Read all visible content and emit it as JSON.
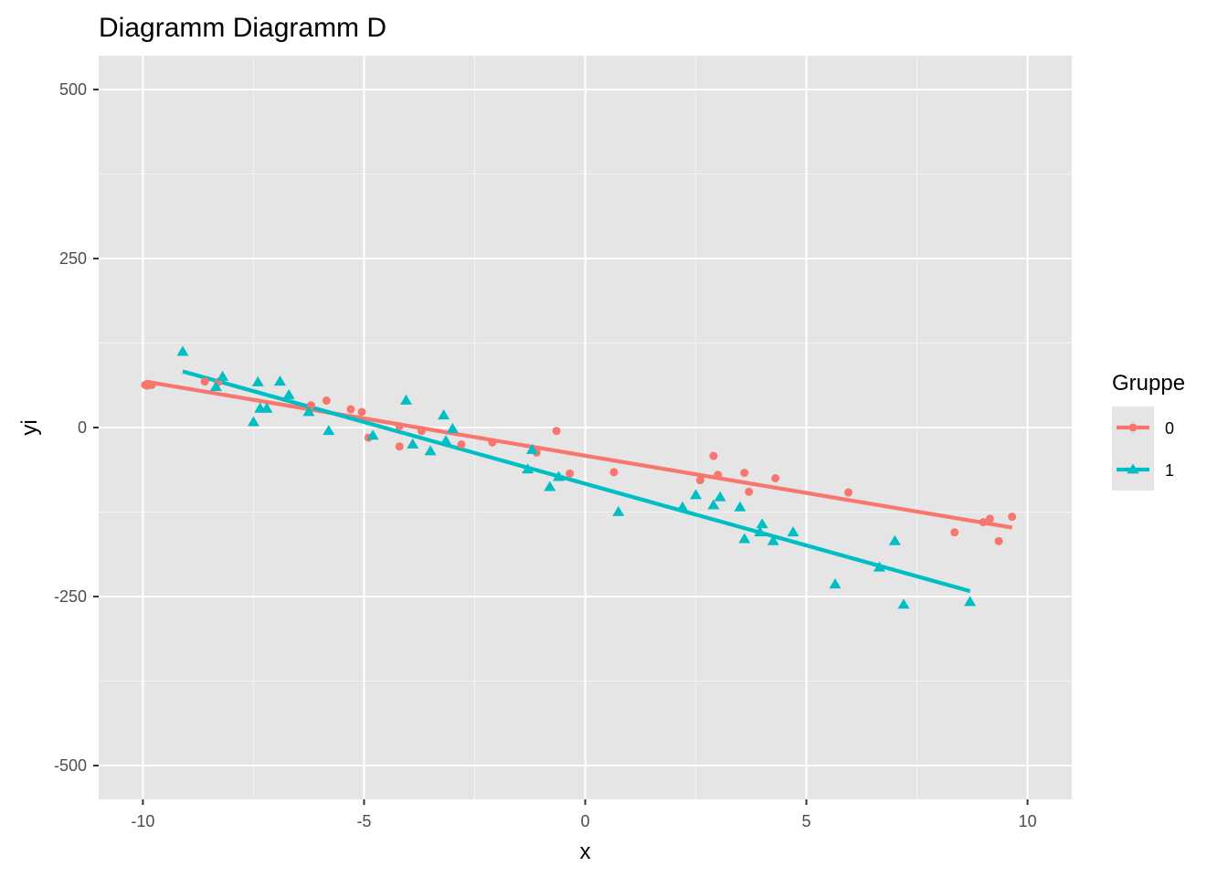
{
  "chart_data": {
    "type": "scatter",
    "title": "Diagramm Diagramm D",
    "xlabel": "x",
    "ylabel": "yi",
    "xlim": [
      -11,
      11
    ],
    "ylim": [
      -550,
      550
    ],
    "x_ticks": [
      -10,
      -5,
      0,
      5,
      10
    ],
    "x_tick_labels": [
      "-10",
      "-5",
      "0",
      "5",
      "10"
    ],
    "y_ticks": [
      -500,
      -250,
      0,
      250,
      500
    ],
    "y_tick_labels": [
      "-500",
      "-250",
      "0",
      "250",
      "500"
    ],
    "grid": true,
    "background": "#e5e5e5",
    "legend": {
      "title": "Gruppe",
      "position": "right"
    },
    "series": [
      {
        "name": "0",
        "color": "#f8766d",
        "marker": "circle",
        "points": [
          [
            -9.95,
            63
          ],
          [
            -9.9,
            62
          ],
          [
            -9.85,
            64
          ],
          [
            -9.8,
            63
          ],
          [
            -8.6,
            68
          ],
          [
            -8.3,
            67
          ],
          [
            -6.2,
            33
          ],
          [
            -5.85,
            40
          ],
          [
            -5.3,
            27
          ],
          [
            -5.05,
            23
          ],
          [
            -4.9,
            -15
          ],
          [
            -4.2,
            -28
          ],
          [
            -4.2,
            2
          ],
          [
            -3.7,
            -5
          ],
          [
            -2.8,
            -25
          ],
          [
            -2.1,
            -22
          ],
          [
            -1.1,
            -37
          ],
          [
            -0.65,
            -5
          ],
          [
            -0.35,
            -68
          ],
          [
            0.65,
            -66
          ],
          [
            2.6,
            -78
          ],
          [
            2.9,
            -42
          ],
          [
            3.0,
            -70
          ],
          [
            3.6,
            -67
          ],
          [
            3.7,
            -95
          ],
          [
            4.3,
            -75
          ],
          [
            5.95,
            -96
          ],
          [
            8.35,
            -155
          ],
          [
            9.0,
            -140
          ],
          [
            9.15,
            -135
          ],
          [
            9.35,
            -168
          ],
          [
            9.65,
            -132
          ]
        ],
        "fit": [
          [
            -9.95,
            68
          ],
          [
            9.65,
            -148
          ]
        ]
      },
      {
        "name": "1",
        "color": "#00bfc4",
        "marker": "triangle",
        "points": [
          [
            -9.1,
            112
          ],
          [
            -8.35,
            60
          ],
          [
            -8.2,
            75
          ],
          [
            -7.5,
            8
          ],
          [
            -7.4,
            67
          ],
          [
            -7.35,
            28
          ],
          [
            -7.2,
            28
          ],
          [
            -6.9,
            68
          ],
          [
            -6.7,
            48
          ],
          [
            -6.25,
            23
          ],
          [
            -5.8,
            -5
          ],
          [
            -4.8,
            -12
          ],
          [
            -4.05,
            40
          ],
          [
            -3.9,
            -25
          ],
          [
            -3.5,
            -35
          ],
          [
            -3.2,
            18
          ],
          [
            -3.15,
            -20
          ],
          [
            -3.0,
            -2
          ],
          [
            -1.3,
            -62
          ],
          [
            -1.2,
            -33
          ],
          [
            -0.8,
            -88
          ],
          [
            -0.6,
            -73
          ],
          [
            0.75,
            -125
          ],
          [
            2.2,
            -118
          ],
          [
            2.5,
            -100
          ],
          [
            2.9,
            -115
          ],
          [
            3.05,
            -103
          ],
          [
            3.5,
            -118
          ],
          [
            3.6,
            -165
          ],
          [
            3.95,
            -155
          ],
          [
            4.0,
            -143
          ],
          [
            4.25,
            -168
          ],
          [
            4.7,
            -155
          ],
          [
            5.65,
            -232
          ],
          [
            6.65,
            -207
          ],
          [
            7.0,
            -168
          ],
          [
            7.2,
            -262
          ],
          [
            8.7,
            -258
          ]
        ],
        "fit": [
          [
            -9.1,
            83
          ],
          [
            8.7,
            -242
          ]
        ]
      }
    ]
  }
}
